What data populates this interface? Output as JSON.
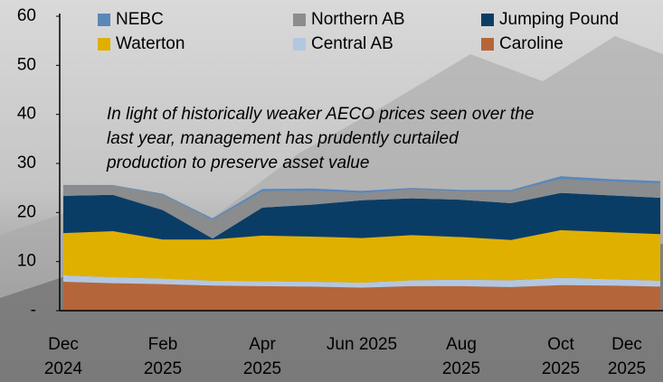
{
  "chart_data": {
    "type": "stacked_area",
    "categories": [
      "Dec\n2024",
      null,
      "Feb\n2025",
      null,
      "Apr\n2025",
      null,
      "Jun 2025",
      null,
      "Aug\n2025",
      null,
      "Oct\n2025",
      null,
      "Dec\n2025"
    ],
    "series": [
      {
        "name": "NEBC",
        "color": "#5b87b8",
        "values": [
          0.1,
          0.1,
          0.2,
          0.3,
          0.5,
          0.5,
          0.4,
          0.3,
          0.3,
          0.3,
          0.6,
          0.5,
          0.5
        ]
      },
      {
        "name": "Northern AB",
        "color": "#8a8c8e",
        "values": [
          2.1,
          1.9,
          3.1,
          3.8,
          3.3,
          2.8,
          1.5,
          1.8,
          1.7,
          2.4,
          2.8,
          2.8,
          2.9
        ]
      },
      {
        "name": "Jumping Pound",
        "color": "#0a3d66",
        "values": [
          7.6,
          7.4,
          6.0,
          0.2,
          5.7,
          6.5,
          7.7,
          7.5,
          7.6,
          7.5,
          7.6,
          7.5,
          7.4
        ]
      },
      {
        "name": "Waterton",
        "color": "#e0b000",
        "values": [
          8.6,
          9.4,
          8.0,
          8.4,
          9.3,
          9.2,
          9.1,
          9.2,
          8.7,
          8.2,
          9.7,
          9.6,
          9.5
        ]
      },
      {
        "name": "Central AB",
        "color": "#b4c7e0",
        "values": [
          1.3,
          1.2,
          1.1,
          1.0,
          1.0,
          1.0,
          1.0,
          1.2,
          1.3,
          1.4,
          1.5,
          1.3,
          1.2
        ]
      },
      {
        "name": "Caroline",
        "color": "#b5653a",
        "values": [
          5.9,
          5.6,
          5.4,
          5.1,
          5.0,
          4.9,
          4.7,
          5.0,
          5.0,
          4.8,
          5.2,
          5.1,
          4.9
        ]
      }
    ],
    "annotation": [
      "In light of historically weaker AECO prices seen over the",
      "last year, management has prudently curtailed",
      "production to preserve asset value"
    ],
    "ylim": [
      0,
      60
    ],
    "yticks": [
      {
        "value": 0,
        "label": "-"
      },
      10,
      20,
      30,
      40,
      50,
      60
    ],
    "grid": false,
    "legend": "top"
  }
}
